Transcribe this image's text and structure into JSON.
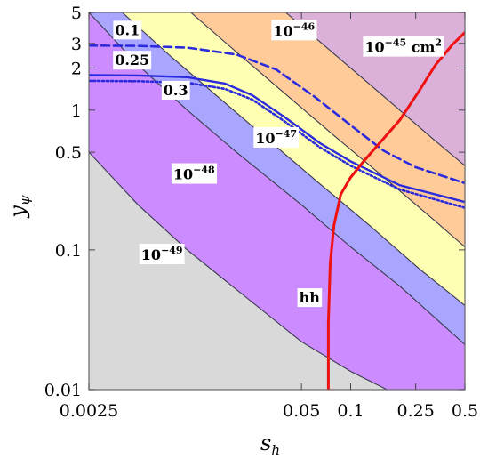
{
  "chart_data": {
    "type": "contour",
    "xlabel": "s",
    "xlabel_sub": "h",
    "ylabel": "y",
    "ylabel_sub": "ψ",
    "xscale": "log",
    "yscale": "log",
    "xlim": [
      0.0025,
      0.5
    ],
    "ylim": [
      0.01,
      5
    ],
    "grid": false,
    "x_ticks": [
      {
        "value": 0.0025,
        "label": "0.0025"
      },
      {
        "value": 0.05,
        "label": "0.05"
      },
      {
        "value": 0.1,
        "label": "0.1"
      },
      {
        "value": 0.25,
        "label": "0.25"
      },
      {
        "value": 0.5,
        "label": "0.5"
      }
    ],
    "y_ticks": [
      {
        "value": 0.01,
        "label": "0.01"
      },
      {
        "value": 0.1,
        "label": "0.1"
      },
      {
        "value": 0.5,
        "label": "0.5"
      },
      {
        "value": 1,
        "label": "1"
      },
      {
        "value": 2,
        "label": "2"
      },
      {
        "value": 3,
        "label": "3"
      },
      {
        "value": 5,
        "label": "5"
      }
    ],
    "cross_section_bands": [
      {
        "label_base": "10",
        "label_exp": "−49",
        "label_unit": "",
        "color": "#cc8cff",
        "label_at": [
          0.007,
          0.085
        ],
        "lower": [
          [
            0.0025,
            0.5
          ],
          [
            0.005,
            0.21
          ],
          [
            0.01,
            0.1
          ],
          [
            0.02,
            0.052
          ],
          [
            0.05,
            0.022
          ],
          [
            0.1,
            0.0135
          ],
          [
            0.2,
            0.009
          ],
          [
            0.5,
            0.006
          ]
        ]
      },
      {
        "label_base": "10",
        "label_exp": "−48",
        "label_unit": "",
        "color": "#a9a6ff",
        "label_at": [
          0.011,
          0.32
        ],
        "lower": [
          [
            0.0025,
            5
          ],
          [
            0.005,
            2.1
          ],
          [
            0.01,
            1.0
          ],
          [
            0.02,
            0.5
          ],
          [
            0.05,
            0.21
          ],
          [
            0.1,
            0.105
          ],
          [
            0.2,
            0.055
          ],
          [
            0.5,
            0.021
          ]
        ]
      },
      {
        "label_base": "10",
        "label_exp": "−47",
        "label_unit": "",
        "color": "#ffffb3",
        "label_at": [
          0.035,
          0.58
        ],
        "lower": [
          [
            0.004,
            5
          ],
          [
            0.008,
            2.4
          ],
          [
            0.016,
            1.2
          ],
          [
            0.032,
            0.6
          ],
          [
            0.064,
            0.3
          ],
          [
            0.13,
            0.15
          ],
          [
            0.26,
            0.074
          ],
          [
            0.5,
            0.04
          ]
        ]
      },
      {
        "label_base": "10",
        "label_exp": "−46",
        "label_unit": "",
        "color": "#ffcc99",
        "label_at": [
          0.045,
          3.4
        ],
        "lower": [
          [
            0.0105,
            5
          ],
          [
            0.02,
            2.6
          ],
          [
            0.04,
            1.3
          ],
          [
            0.08,
            0.65
          ],
          [
            0.16,
            0.33
          ],
          [
            0.32,
            0.165
          ],
          [
            0.5,
            0.105
          ]
        ]
      },
      {
        "label_base": "10",
        "label_exp": "−45",
        "label_unit": " cm",
        "label_unit_sup": "2",
        "color": "#dbb0d9",
        "label_at": [
          0.21,
          2.6
        ],
        "lower": [
          [
            0.04,
            5
          ],
          [
            0.08,
            2.5
          ],
          [
            0.16,
            1.25
          ],
          [
            0.32,
            0.62
          ],
          [
            0.5,
            0.4
          ]
        ]
      }
    ],
    "coupling_curves": [
      {
        "label": "0.1",
        "style": "dashed",
        "color": "#2b2bdd",
        "label_at": [
          0.0043,
          3.45
        ],
        "points": [
          [
            0.0025,
            2.9
          ],
          [
            0.005,
            2.88
          ],
          [
            0.01,
            2.8
          ],
          [
            0.02,
            2.5
          ],
          [
            0.035,
            1.95
          ],
          [
            0.06,
            1.25
          ],
          [
            0.1,
            0.78
          ],
          [
            0.16,
            0.51
          ],
          [
            0.25,
            0.39
          ],
          [
            0.5,
            0.3
          ]
        ]
      },
      {
        "label": "0.25",
        "style": "solid",
        "color": "#2b2bdd",
        "label_at": [
          0.0046,
          2.1
        ],
        "points": [
          [
            0.0025,
            1.78
          ],
          [
            0.005,
            1.77
          ],
          [
            0.01,
            1.72
          ],
          [
            0.017,
            1.55
          ],
          [
            0.025,
            1.28
          ],
          [
            0.04,
            0.88
          ],
          [
            0.065,
            0.58
          ],
          [
            0.1,
            0.43
          ],
          [
            0.2,
            0.29
          ],
          [
            0.5,
            0.22
          ]
        ]
      },
      {
        "label": "0.3",
        "style": "dotted",
        "color": "#2b2bdd",
        "label_at": [
          0.0085,
          1.28
        ],
        "points": [
          [
            0.0025,
            1.62
          ],
          [
            0.005,
            1.61
          ],
          [
            0.01,
            1.57
          ],
          [
            0.017,
            1.42
          ],
          [
            0.025,
            1.19
          ],
          [
            0.04,
            0.82
          ],
          [
            0.065,
            0.54
          ],
          [
            0.1,
            0.4
          ],
          [
            0.2,
            0.27
          ],
          [
            0.5,
            0.2
          ]
        ]
      }
    ],
    "hh_curve": {
      "label": "hh",
      "color": "#ee1111",
      "label_at": [
        0.056,
        0.042
      ],
      "points": [
        [
          0.073,
          0.01
        ],
        [
          0.073,
          0.03
        ],
        [
          0.075,
          0.08
        ],
        [
          0.079,
          0.15
        ],
        [
          0.087,
          0.25
        ],
        [
          0.1,
          0.33
        ],
        [
          0.12,
          0.43
        ],
        [
          0.15,
          0.58
        ],
        [
          0.2,
          0.85
        ],
        [
          0.26,
          1.35
        ],
        [
          0.33,
          2.1
        ],
        [
          0.42,
          2.95
        ],
        [
          0.5,
          3.6
        ]
      ]
    }
  }
}
